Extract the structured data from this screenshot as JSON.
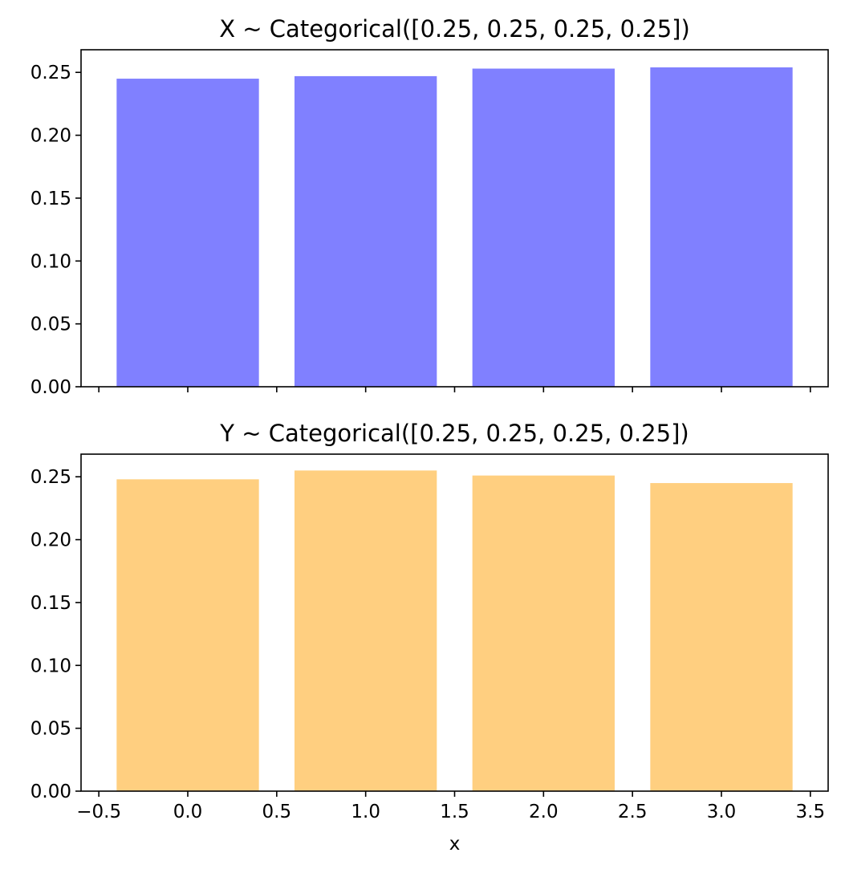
{
  "chart_data": [
    {
      "type": "bar",
      "title": "X ~ Categorical([0.25, 0.25, 0.25, 0.25])",
      "x": [
        0,
        1,
        2,
        3
      ],
      "values": [
        0.245,
        0.247,
        0.253,
        0.254
      ],
      "bar_width": 0.8,
      "color": "#8080ff",
      "xlim": [
        -0.6,
        3.6
      ],
      "ylim": [
        0,
        0.268
      ],
      "yticks": [
        0.0,
        0.05,
        0.1,
        0.15,
        0.2,
        0.25
      ],
      "ytick_labels": [
        "0.00",
        "0.05",
        "0.10",
        "0.15",
        "0.20",
        "0.25"
      ],
      "xticks": [
        -0.5,
        0.0,
        0.5,
        1.0,
        1.5,
        2.0,
        2.5,
        3.0,
        3.5
      ],
      "xtick_labels": [],
      "xlabel": "",
      "ylabel": "",
      "grid": false
    },
    {
      "type": "bar",
      "title": "Y ~ Categorical([0.25, 0.25, 0.25, 0.25])",
      "x": [
        0,
        1,
        2,
        3
      ],
      "values": [
        0.248,
        0.255,
        0.251,
        0.245
      ],
      "bar_width": 0.8,
      "color": "#ffcf80",
      "xlim": [
        -0.6,
        3.6
      ],
      "ylim": [
        0,
        0.268
      ],
      "yticks": [
        0.0,
        0.05,
        0.1,
        0.15,
        0.2,
        0.25
      ],
      "ytick_labels": [
        "0.00",
        "0.05",
        "0.10",
        "0.15",
        "0.20",
        "0.25"
      ],
      "xticks": [
        -0.5,
        0.0,
        0.5,
        1.0,
        1.5,
        2.0,
        2.5,
        3.0,
        3.5
      ],
      "xtick_labels": [
        "−0.5",
        "0.0",
        "0.5",
        "1.0",
        "1.5",
        "2.0",
        "2.5",
        "3.0",
        "3.5"
      ],
      "xlabel": "x",
      "ylabel": "",
      "grid": false
    }
  ]
}
